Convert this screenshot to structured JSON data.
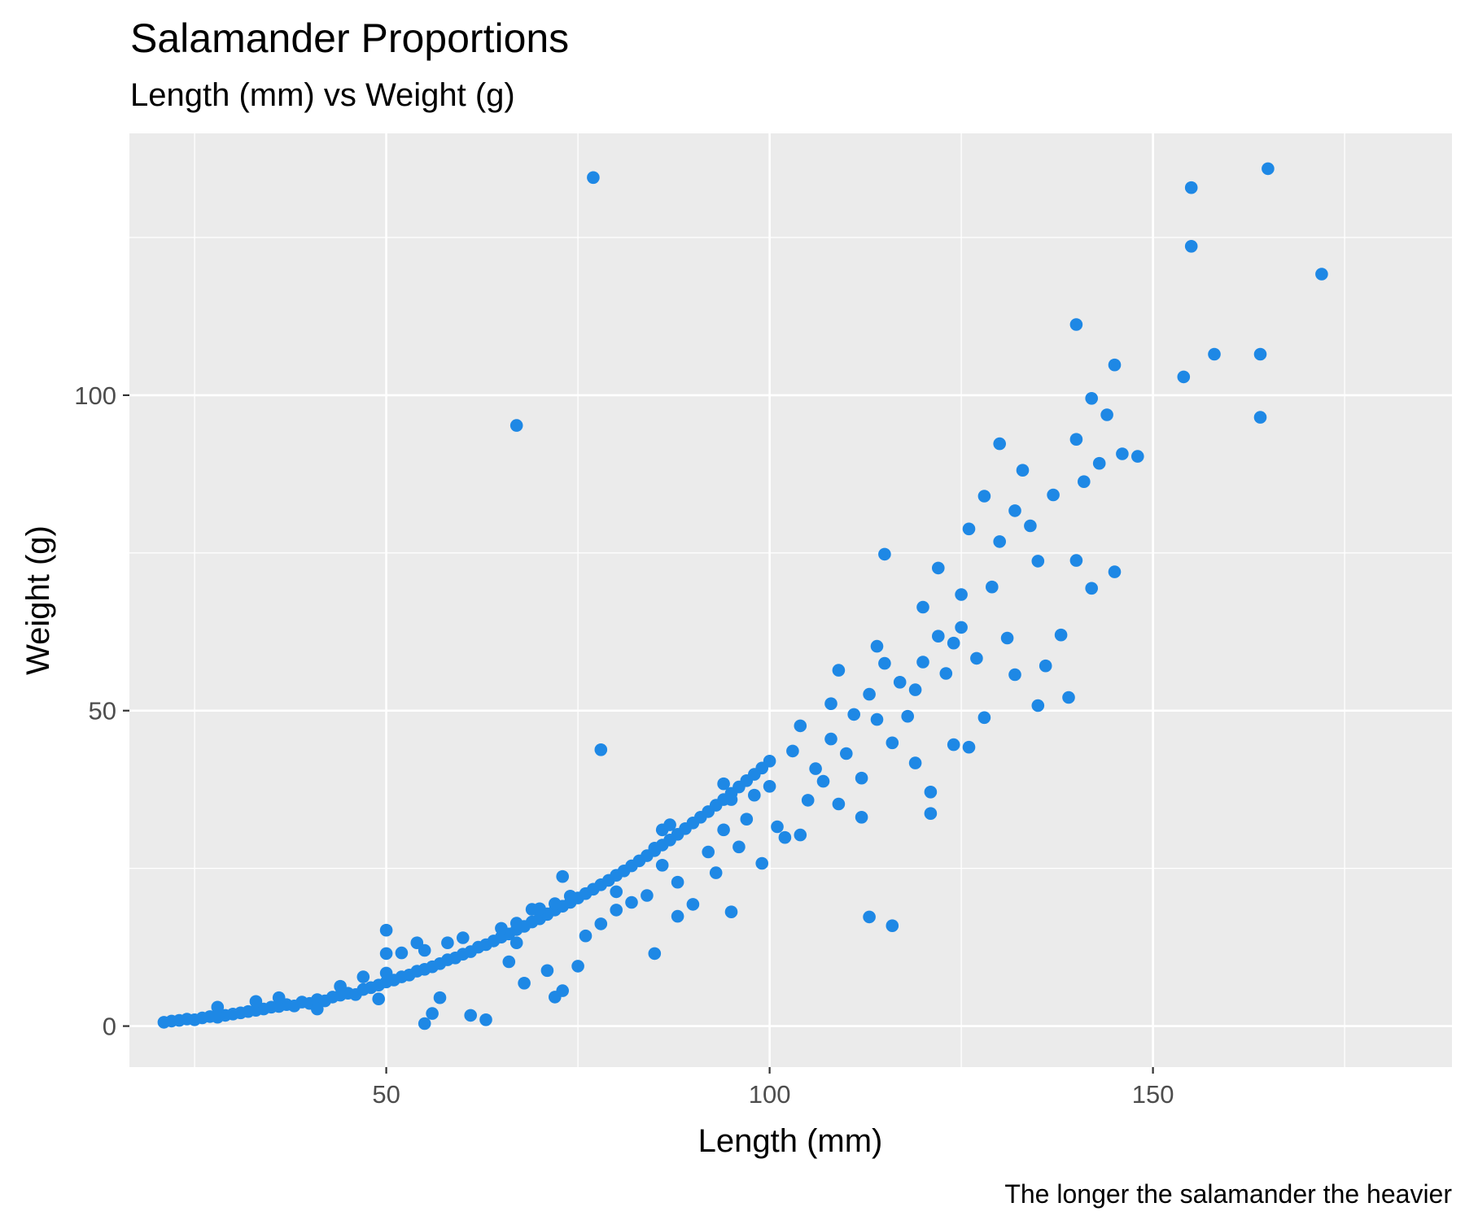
{
  "chart_data": {
    "type": "scatter",
    "title": "Salamander Proportions",
    "subtitle": "Length (mm) vs Weight (g)",
    "xlabel": "Length (mm)",
    "ylabel": "Weight (g)",
    "caption": "The longer the salamander the heavier",
    "xlim": [
      16.5,
      189
    ],
    "ylim": [
      -6.5,
      141.5
    ],
    "x_ticks": [
      50,
      100,
      150
    ],
    "x_tick_labels": [
      "50",
      "100",
      "150"
    ],
    "y_ticks": [
      0,
      50,
      100
    ],
    "y_tick_labels": [
      "0",
      "50",
      "100"
    ],
    "grid": true,
    "legend": "none",
    "colors": {
      "panel": "#ebebeb",
      "grid": "#ffffff",
      "point": "#1e88e5"
    },
    "points": [
      {
        "x": 21,
        "y": 0.6
      },
      {
        "x": 22,
        "y": 0.8
      },
      {
        "x": 23,
        "y": 0.9
      },
      {
        "x": 24,
        "y": 1.1
      },
      {
        "x": 25,
        "y": 1.0
      },
      {
        "x": 26,
        "y": 1.3
      },
      {
        "x": 27,
        "y": 1.5
      },
      {
        "x": 28,
        "y": 1.4
      },
      {
        "x": 29,
        "y": 1.7
      },
      {
        "x": 30,
        "y": 1.9
      },
      {
        "x": 31,
        "y": 2.1
      },
      {
        "x": 32,
        "y": 2.3
      },
      {
        "x": 33,
        "y": 2.5
      },
      {
        "x": 34,
        "y": 2.7
      },
      {
        "x": 35,
        "y": 3.0
      },
      {
        "x": 36,
        "y": 3.1
      },
      {
        "x": 37,
        "y": 3.4
      },
      {
        "x": 38,
        "y": 3.2
      },
      {
        "x": 39,
        "y": 3.8
      },
      {
        "x": 40,
        "y": 3.6
      },
      {
        "x": 41,
        "y": 4.2
      },
      {
        "x": 42,
        "y": 4.0
      },
      {
        "x": 43,
        "y": 4.6
      },
      {
        "x": 44,
        "y": 4.9
      },
      {
        "x": 45,
        "y": 5.2
      },
      {
        "x": 46,
        "y": 5.0
      },
      {
        "x": 47,
        "y": 5.8
      },
      {
        "x": 48,
        "y": 6.1
      },
      {
        "x": 49,
        "y": 6.5
      },
      {
        "x": 50,
        "y": 7.0
      },
      {
        "x": 51,
        "y": 7.3
      },
      {
        "x": 52,
        "y": 7.8
      },
      {
        "x": 53,
        "y": 8.1
      },
      {
        "x": 54,
        "y": 8.7
      },
      {
        "x": 55,
        "y": 9.0
      },
      {
        "x": 56,
        "y": 9.4
      },
      {
        "x": 57,
        "y": 9.9
      },
      {
        "x": 58,
        "y": 10.5
      },
      {
        "x": 59,
        "y": 10.8
      },
      {
        "x": 60,
        "y": 11.4
      },
      {
        "x": 61,
        "y": 11.8
      },
      {
        "x": 62,
        "y": 12.5
      },
      {
        "x": 63,
        "y": 12.9
      },
      {
        "x": 64,
        "y": 13.5
      },
      {
        "x": 65,
        "y": 14.1
      },
      {
        "x": 66,
        "y": 14.6
      },
      {
        "x": 67,
        "y": 15.3
      },
      {
        "x": 68,
        "y": 15.8
      },
      {
        "x": 69,
        "y": 16.5
      },
      {
        "x": 70,
        "y": 17.0
      },
      {
        "x": 71,
        "y": 17.7
      },
      {
        "x": 72,
        "y": 18.4
      },
      {
        "x": 73,
        "y": 19.0
      },
      {
        "x": 74,
        "y": 19.6
      },
      {
        "x": 75,
        "y": 20.3
      },
      {
        "x": 76,
        "y": 21.0
      },
      {
        "x": 77,
        "y": 21.7
      },
      {
        "x": 78,
        "y": 22.4
      },
      {
        "x": 79,
        "y": 23.1
      },
      {
        "x": 80,
        "y": 23.9
      },
      {
        "x": 81,
        "y": 24.6
      },
      {
        "x": 82,
        "y": 25.4
      },
      {
        "x": 83,
        "y": 26.2
      },
      {
        "x": 84,
        "y": 27.0
      },
      {
        "x": 85,
        "y": 27.8
      },
      {
        "x": 86,
        "y": 28.7
      },
      {
        "x": 87,
        "y": 29.5
      },
      {
        "x": 88,
        "y": 30.4
      },
      {
        "x": 89,
        "y": 31.3
      },
      {
        "x": 90,
        "y": 32.2
      },
      {
        "x": 91,
        "y": 33.1
      },
      {
        "x": 92,
        "y": 34.0
      },
      {
        "x": 93,
        "y": 35.0
      },
      {
        "x": 94,
        "y": 35.9
      },
      {
        "x": 95,
        "y": 36.9
      },
      {
        "x": 96,
        "y": 37.9
      },
      {
        "x": 97,
        "y": 38.9
      },
      {
        "x": 98,
        "y": 39.9
      },
      {
        "x": 99,
        "y": 40.9
      },
      {
        "x": 100,
        "y": 42.0
      },
      {
        "x": 28,
        "y": 3.0
      },
      {
        "x": 33,
        "y": 3.9
      },
      {
        "x": 36,
        "y": 4.5
      },
      {
        "x": 41,
        "y": 2.7
      },
      {
        "x": 44,
        "y": 6.3
      },
      {
        "x": 47,
        "y": 7.8
      },
      {
        "x": 50,
        "y": 15.2
      },
      {
        "x": 50,
        "y": 11.5
      },
      {
        "x": 50,
        "y": 8.4
      },
      {
        "x": 49,
        "y": 4.3
      },
      {
        "x": 55,
        "y": 0.4
      },
      {
        "x": 56,
        "y": 2.0
      },
      {
        "x": 57,
        "y": 4.5
      },
      {
        "x": 61,
        "y": 1.7
      },
      {
        "x": 63,
        "y": 1.0
      },
      {
        "x": 52,
        "y": 11.6
      },
      {
        "x": 54,
        "y": 13.2
      },
      {
        "x": 58,
        "y": 13.2
      },
      {
        "x": 60,
        "y": 14.0
      },
      {
        "x": 55,
        "y": 12.0
      },
      {
        "x": 65,
        "y": 15.5
      },
      {
        "x": 67,
        "y": 16.3
      },
      {
        "x": 68,
        "y": 6.8
      },
      {
        "x": 66,
        "y": 10.2
      },
      {
        "x": 69,
        "y": 18.5
      },
      {
        "x": 71,
        "y": 17.8
      },
      {
        "x": 72,
        "y": 19.4
      },
      {
        "x": 73,
        "y": 23.7
      },
      {
        "x": 70,
        "y": 18.6
      },
      {
        "x": 74,
        "y": 20.6
      },
      {
        "x": 67,
        "y": 13.2
      },
      {
        "x": 71,
        "y": 8.8
      },
      {
        "x": 72,
        "y": 4.6
      },
      {
        "x": 73,
        "y": 5.6
      },
      {
        "x": 75,
        "y": 9.5
      },
      {
        "x": 76,
        "y": 14.3
      },
      {
        "x": 78,
        "y": 16.2
      },
      {
        "x": 80,
        "y": 18.4
      },
      {
        "x": 80,
        "y": 21.3
      },
      {
        "x": 82,
        "y": 19.6
      },
      {
        "x": 84,
        "y": 20.7
      },
      {
        "x": 85,
        "y": 11.5
      },
      {
        "x": 86,
        "y": 25.5
      },
      {
        "x": 85,
        "y": 28.2
      },
      {
        "x": 86,
        "y": 31.1
      },
      {
        "x": 87,
        "y": 31.9
      },
      {
        "x": 88,
        "y": 17.4
      },
      {
        "x": 88,
        "y": 22.8
      },
      {
        "x": 90,
        "y": 19.3
      },
      {
        "x": 92,
        "y": 27.6
      },
      {
        "x": 93,
        "y": 24.3
      },
      {
        "x": 94,
        "y": 31.1
      },
      {
        "x": 94,
        "y": 38.4
      },
      {
        "x": 95,
        "y": 35.9
      },
      {
        "x": 95,
        "y": 18.1
      },
      {
        "x": 96,
        "y": 28.4
      },
      {
        "x": 97,
        "y": 32.8
      },
      {
        "x": 98,
        "y": 36.6
      },
      {
        "x": 99,
        "y": 25.8
      },
      {
        "x": 100,
        "y": 38.0
      },
      {
        "x": 101,
        "y": 31.6
      },
      {
        "x": 102,
        "y": 29.9
      },
      {
        "x": 103,
        "y": 43.6
      },
      {
        "x": 104,
        "y": 47.6
      },
      {
        "x": 104,
        "y": 30.3
      },
      {
        "x": 105,
        "y": 35.8
      },
      {
        "x": 106,
        "y": 40.8
      },
      {
        "x": 107,
        "y": 38.8
      },
      {
        "x": 108,
        "y": 45.5
      },
      {
        "x": 108,
        "y": 51.1
      },
      {
        "x": 109,
        "y": 56.4
      },
      {
        "x": 109,
        "y": 35.2
      },
      {
        "x": 110,
        "y": 43.2
      },
      {
        "x": 111,
        "y": 49.4
      },
      {
        "x": 112,
        "y": 39.3
      },
      {
        "x": 112,
        "y": 33.1
      },
      {
        "x": 113,
        "y": 17.3
      },
      {
        "x": 113,
        "y": 52.6
      },
      {
        "x": 114,
        "y": 48.6
      },
      {
        "x": 114,
        "y": 60.2
      },
      {
        "x": 115,
        "y": 74.8
      },
      {
        "x": 115,
        "y": 57.5
      },
      {
        "x": 116,
        "y": 15.9
      },
      {
        "x": 116,
        "y": 44.9
      },
      {
        "x": 117,
        "y": 54.5
      },
      {
        "x": 118,
        "y": 49.1
      },
      {
        "x": 119,
        "y": 41.7
      },
      {
        "x": 119,
        "y": 53.3
      },
      {
        "x": 120,
        "y": 66.4
      },
      {
        "x": 120,
        "y": 57.7
      },
      {
        "x": 121,
        "y": 33.7
      },
      {
        "x": 121,
        "y": 37.1
      },
      {
        "x": 122,
        "y": 72.6
      },
      {
        "x": 122,
        "y": 61.8
      },
      {
        "x": 123,
        "y": 55.9
      },
      {
        "x": 124,
        "y": 44.6
      },
      {
        "x": 124,
        "y": 60.7
      },
      {
        "x": 125,
        "y": 68.4
      },
      {
        "x": 125,
        "y": 63.2
      },
      {
        "x": 126,
        "y": 78.8
      },
      {
        "x": 126,
        "y": 44.2
      },
      {
        "x": 127,
        "y": 58.3
      },
      {
        "x": 128,
        "y": 84.0
      },
      {
        "x": 128,
        "y": 48.9
      },
      {
        "x": 129,
        "y": 69.6
      },
      {
        "x": 130,
        "y": 92.3
      },
      {
        "x": 130,
        "y": 76.8
      },
      {
        "x": 131,
        "y": 61.5
      },
      {
        "x": 132,
        "y": 81.7
      },
      {
        "x": 132,
        "y": 55.7
      },
      {
        "x": 133,
        "y": 88.1
      },
      {
        "x": 134,
        "y": 79.3
      },
      {
        "x": 135,
        "y": 73.7
      },
      {
        "x": 135,
        "y": 50.8
      },
      {
        "x": 136,
        "y": 57.1
      },
      {
        "x": 137,
        "y": 84.2
      },
      {
        "x": 138,
        "y": 62.0
      },
      {
        "x": 139,
        "y": 52.1
      },
      {
        "x": 140,
        "y": 93.0
      },
      {
        "x": 140,
        "y": 73.8
      },
      {
        "x": 140,
        "y": 111.2
      },
      {
        "x": 141,
        "y": 86.3
      },
      {
        "x": 142,
        "y": 99.5
      },
      {
        "x": 142,
        "y": 69.4
      },
      {
        "x": 143,
        "y": 89.2
      },
      {
        "x": 144,
        "y": 96.9
      },
      {
        "x": 145,
        "y": 104.8
      },
      {
        "x": 145,
        "y": 72.0
      },
      {
        "x": 146,
        "y": 90.7
      },
      {
        "x": 148,
        "y": 90.3
      },
      {
        "x": 154,
        "y": 102.9
      },
      {
        "x": 155,
        "y": 132.9
      },
      {
        "x": 155,
        "y": 123.6
      },
      {
        "x": 158,
        "y": 106.5
      },
      {
        "x": 164,
        "y": 96.5
      },
      {
        "x": 164,
        "y": 106.5
      },
      {
        "x": 165,
        "y": 135.9
      },
      {
        "x": 172,
        "y": 119.2
      },
      {
        "x": 67,
        "y": 95.2
      },
      {
        "x": 77,
        "y": 134.5
      },
      {
        "x": 78,
        "y": 43.8
      }
    ]
  }
}
